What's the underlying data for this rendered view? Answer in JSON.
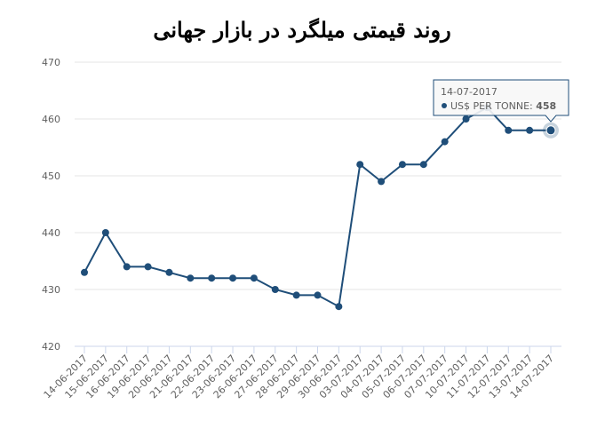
{
  "chart_data": {
    "type": "line",
    "title": "روند قیمتی میلگرد در بازار جهانی",
    "categories": [
      "14-06-2017",
      "15-06-2017",
      "16-06-2017",
      "19-06-2017",
      "20-06-2017",
      "21-06-2017",
      "22-06-2017",
      "23-06-2017",
      "26-06-2017",
      "27-06-2017",
      "28-06-2017",
      "29-06-2017",
      "30-06-2017",
      "03-07-2017",
      "04-07-2017",
      "05-07-2017",
      "06-07-2017",
      "07-07-2017",
      "10-07-2017",
      "11-07-2017",
      "12-07-2017",
      "13-07-2017",
      "14-07-2017"
    ],
    "series": [
      {
        "name": "US$ PER TONNE",
        "color": "#1f4e79",
        "values": [
          433,
          440,
          434,
          434,
          433,
          432,
          432,
          432,
          432,
          430,
          429,
          429,
          427,
          452,
          449,
          452,
          452,
          456,
          460,
          462,
          458,
          458,
          458
        ]
      }
    ],
    "ylim": [
      420,
      470
    ],
    "yticks": [
      420,
      430,
      440,
      450,
      460,
      470
    ],
    "grid": true
  }
}
